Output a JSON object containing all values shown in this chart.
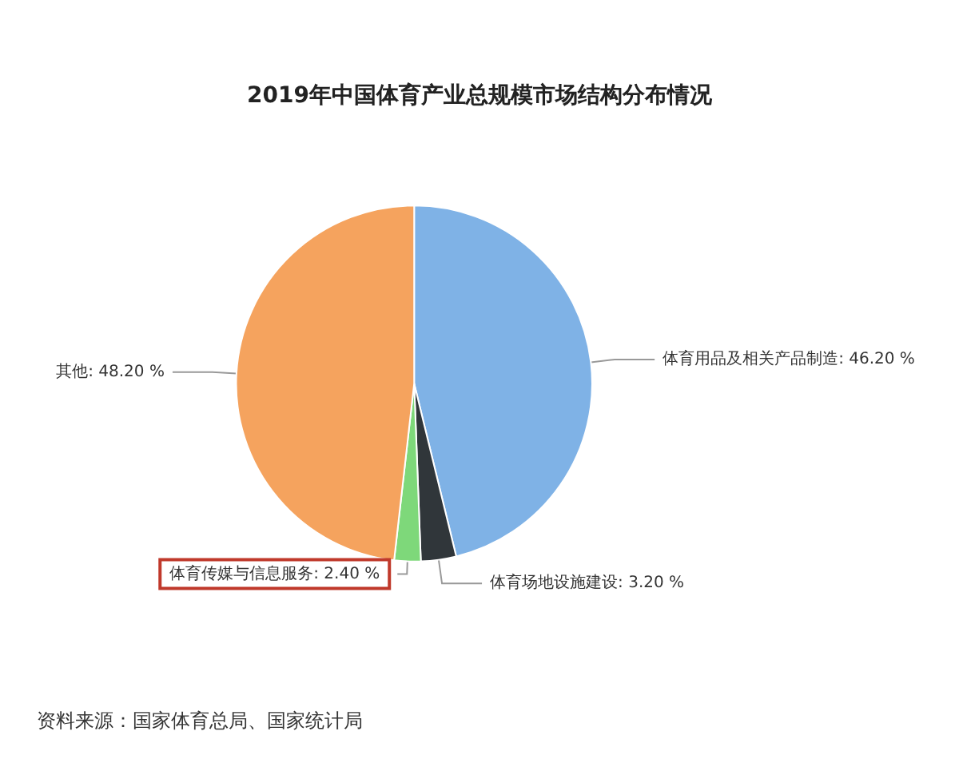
{
  "chart_data": {
    "type": "pie",
    "title": "2019年中国体育产业总规模市场结构分布情况",
    "categories": [
      "体育用品及相关产品制造",
      "体育场地设施建设",
      "体育传媒与信息服务",
      "其他"
    ],
    "values": [
      46.2,
      3.2,
      2.4,
      48.2
    ],
    "value_labels": [
      "46.20 %",
      "3.20 %",
      "2.40 %",
      "48.20 %"
    ],
    "colors": [
      "#7fb2e6",
      "#30363a",
      "#7ed87a",
      "#f5a35e"
    ],
    "legend": false,
    "annotations": [
      "资料来源：国家体育总局、国家统计局"
    ]
  }
}
